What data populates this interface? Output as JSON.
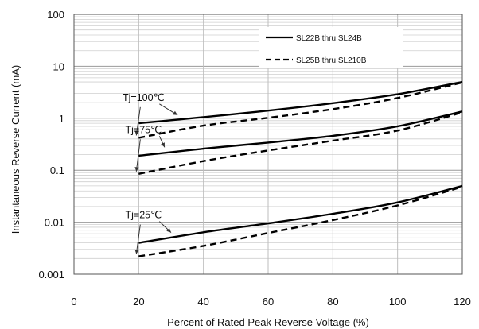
{
  "chart_data": {
    "type": "line",
    "xlabel": "Percent of  Rated Peak Reverse Voltage (%)",
    "ylabel": "Instantaneous Reverse Current (mA)",
    "xlim": [
      0,
      120
    ],
    "ylim": [
      0.001,
      100
    ],
    "yscale": "log",
    "grid": true,
    "x_ticks": [
      0,
      20,
      40,
      60,
      80,
      100,
      120
    ],
    "x_tick_labels": [
      "0",
      "20",
      "40",
      "60",
      "80",
      "100",
      "120"
    ],
    "y_ticks": [
      0.001,
      0.01,
      0.1,
      1,
      10,
      100
    ],
    "y_tick_labels": [
      "0.001",
      "0.01",
      "0.1",
      "1",
      "10",
      "100"
    ],
    "legend_placement": "top-right",
    "legend": [
      {
        "label": "SL22B thru SL24B",
        "style": "solid"
      },
      {
        "label": "SL25B thru SL210B",
        "style": "dashed"
      }
    ],
    "series": [
      {
        "group": "Tj=100℃",
        "style": "solid",
        "x": [
          20,
          40,
          60,
          80,
          100,
          120
        ],
        "y": [
          0.8,
          1.05,
          1.4,
          1.95,
          2.9,
          5.0
        ]
      },
      {
        "group": "Tj=100℃",
        "style": "dashed",
        "x": [
          20,
          40,
          60,
          80,
          100,
          120
        ],
        "y": [
          0.42,
          0.72,
          1.02,
          1.5,
          2.45,
          4.9
        ]
      },
      {
        "group": "Tj=75℃",
        "style": "solid",
        "x": [
          20,
          40,
          60,
          80,
          100,
          120
        ],
        "y": [
          0.19,
          0.26,
          0.34,
          0.46,
          0.7,
          1.35
        ]
      },
      {
        "group": "Tj=75℃",
        "style": "dashed",
        "x": [
          20,
          40,
          60,
          80,
          100,
          120
        ],
        "y": [
          0.085,
          0.15,
          0.24,
          0.37,
          0.58,
          1.3
        ]
      },
      {
        "group": "Tj=25℃",
        "style": "solid",
        "x": [
          20,
          40,
          60,
          80,
          100,
          120
        ],
        "y": [
          0.004,
          0.0064,
          0.0095,
          0.0145,
          0.024,
          0.05
        ]
      },
      {
        "group": "Tj=25℃",
        "style": "dashed",
        "x": [
          20,
          40,
          60,
          80,
          100,
          120
        ],
        "y": [
          0.0022,
          0.0035,
          0.0062,
          0.011,
          0.021,
          0.048
        ]
      }
    ],
    "annotations": [
      {
        "text": "Tj=100℃",
        "points_to": [
          [
            32,
            1.0
          ],
          [
            20,
            0.42
          ]
        ]
      },
      {
        "text": "Tj=75℃",
        "points_to": [
          [
            28,
            0.24
          ],
          [
            20,
            0.085
          ]
        ]
      },
      {
        "text": "Tj=25℃",
        "points_to": [
          [
            30,
            0.0055
          ],
          [
            20,
            0.0022
          ]
        ]
      }
    ]
  }
}
